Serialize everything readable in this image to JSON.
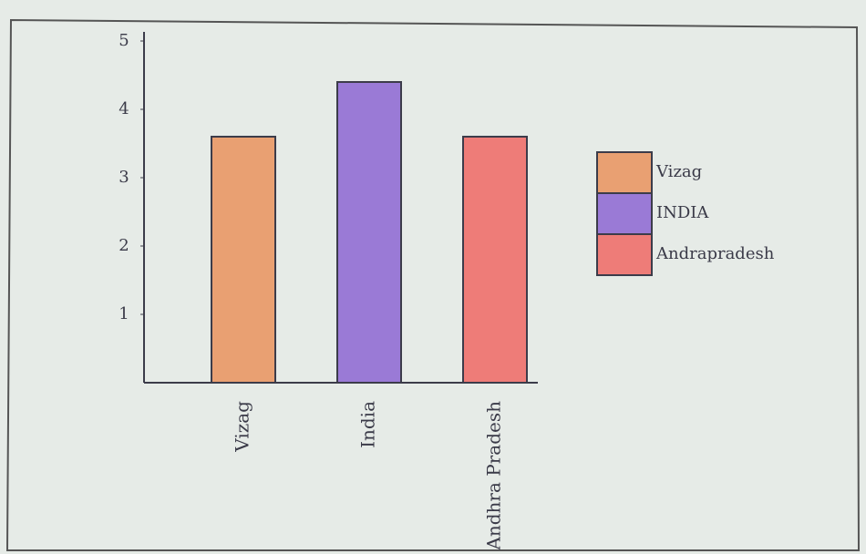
{
  "chart_data": {
    "type": "bar",
    "categories": [
      "Vizag",
      "India",
      "Andhra Pradesh"
    ],
    "values": [
      3.6,
      4.4,
      3.6
    ],
    "colors": [
      "#e9a072",
      "#9a7ad6",
      "#ee7c78"
    ],
    "ylim": [
      0,
      5
    ],
    "yticks": [
      1,
      2,
      3,
      4,
      5
    ],
    "legend": [
      "Vizag",
      "INDIA",
      "Andrapradesh"
    ],
    "legend_position": "right"
  }
}
